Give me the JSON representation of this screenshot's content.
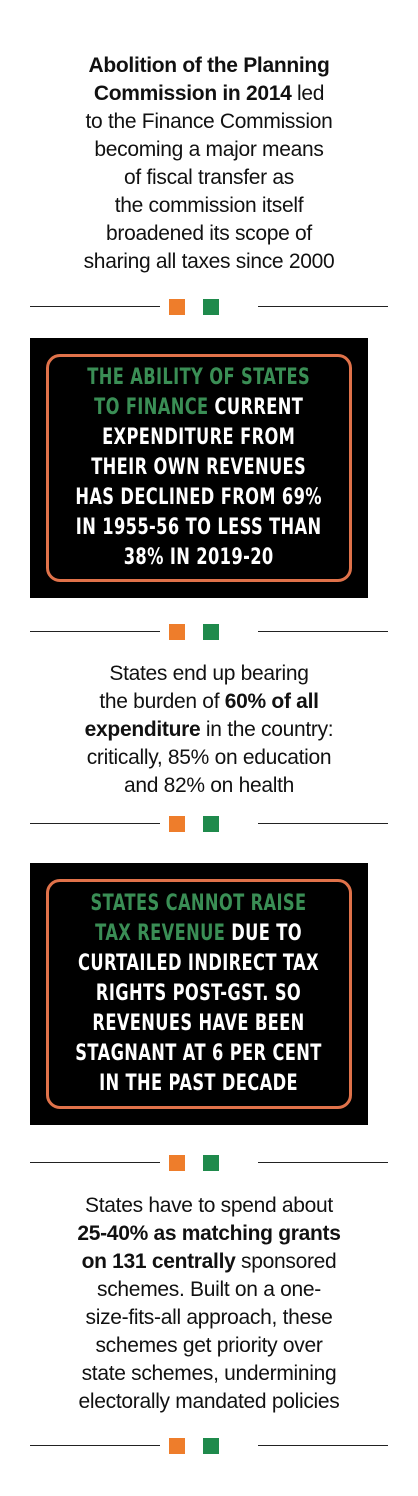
{
  "colors": {
    "orange": "#ee7d2b",
    "green": "#1f8a4c",
    "highlight_green": "#3a8e55",
    "frame_orange": "#e0724a",
    "panel_black": "#000000"
  },
  "block1": {
    "lines": [
      {
        "bold": "Abolition of the Planning",
        "rest": ""
      },
      {
        "bold": "Commission in 2014",
        "rest": " led"
      },
      {
        "bold": "",
        "rest": "to the Finance Commission"
      },
      {
        "bold": "",
        "rest": "becoming a major means"
      },
      {
        "bold": "",
        "rest": "of fiscal transfer as"
      },
      {
        "bold": "",
        "rest": "the commission itself"
      },
      {
        "bold": "",
        "rest": "broadened its scope of"
      },
      {
        "bold": "",
        "rest": "sharing all taxes since 2000"
      }
    ]
  },
  "panel1": {
    "lines": [
      {
        "hl": "THE ABILITY OF STATES",
        "rest": ""
      },
      {
        "hl": "TO FINANCE",
        "rest": " CURRENT"
      },
      {
        "hl": "",
        "rest": "EXPENDITURE FROM"
      },
      {
        "hl": "",
        "rest": "THEIR OWN REVENUES"
      },
      {
        "hl": "",
        "rest": "HAS DECLINED FROM 69%"
      },
      {
        "hl": "",
        "rest": "IN 1955-56 TO LESS THAN"
      },
      {
        "hl": "",
        "rest": "38% IN 2019-20"
      }
    ]
  },
  "block2": {
    "lines": [
      {
        "pre": "States end up bearing",
        "bold": "",
        "post": ""
      },
      {
        "pre": "the burden of ",
        "bold": "60% of all",
        "post": ""
      },
      {
        "pre": "",
        "bold": "expenditure",
        "post": " in the country:"
      },
      {
        "pre": "critically, 85% on education",
        "bold": "",
        "post": ""
      },
      {
        "pre": "and 82% on health",
        "bold": "",
        "post": ""
      }
    ]
  },
  "panel2": {
    "lines": [
      {
        "hl": "STATES CANNOT RAISE",
        "rest": ""
      },
      {
        "hl": "TAX REVENUE",
        "rest": " DUE TO"
      },
      {
        "hl": "",
        "rest": "CURTAILED INDIRECT TAX"
      },
      {
        "hl": "",
        "rest": "RIGHTS POST-GST. SO"
      },
      {
        "hl": "",
        "rest": "REVENUES HAVE BEEN"
      },
      {
        "hl": "",
        "rest": "STAGNANT AT 6 PER CENT"
      },
      {
        "hl": "",
        "rest": "IN THE PAST DECADE"
      }
    ]
  },
  "block3": {
    "lines": [
      {
        "bold": "",
        "rest": "States have to spend about"
      },
      {
        "bold": "25-40% as matching grants",
        "rest": ""
      },
      {
        "bold": "on 131 centrally",
        "rest": " sponsored"
      },
      {
        "bold": "",
        "rest": "schemes. Built on a one-"
      },
      {
        "bold": "",
        "rest": "size-fits-all approach, these"
      },
      {
        "bold": "",
        "rest": "schemes get priority over"
      },
      {
        "bold": "",
        "rest": "state schemes, undermining"
      },
      {
        "bold": "",
        "rest": "electorally mandated policies"
      }
    ]
  }
}
